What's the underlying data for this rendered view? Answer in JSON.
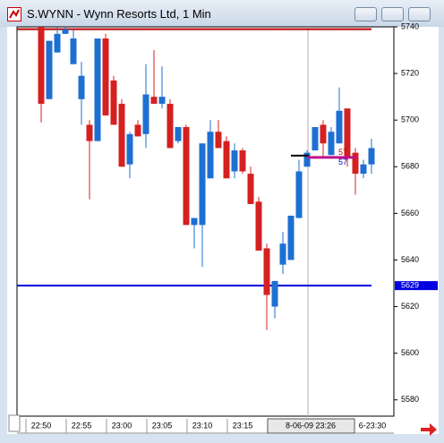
{
  "window_title": "S.WYNN - Wynn Resorts Ltd, 1 Min",
  "chart_data": {
    "type": "candlestick",
    "categories": [
      "22:50",
      null,
      null,
      null,
      null,
      "22:55",
      null,
      null,
      null,
      null,
      "23:00",
      null,
      null,
      null,
      null,
      "23:05",
      null,
      null,
      null,
      null,
      "23:10",
      null,
      null,
      null,
      null,
      "23:15",
      null,
      null,
      null,
      null,
      null,
      null,
      null,
      null,
      null,
      null,
      null,
      null,
      null,
      null,
      null,
      null
    ],
    "open": [
      5740,
      5709,
      5729,
      5737,
      5724,
      5709,
      5698,
      5691,
      5735,
      5717,
      5707,
      5681,
      5698,
      5694,
      5710,
      5707,
      5707,
      5691,
      5697,
      5655,
      5655,
      5675,
      5695,
      5691,
      5678,
      5687,
      5677,
      5665,
      5645,
      5620,
      5638,
      5640,
      5658,
      5680,
      5687,
      5698,
      5685,
      5690,
      5705,
      5686,
      5677,
      5681
    ],
    "high": [
      5740,
      5734,
      5740,
      5740,
      5739,
      5725,
      5700,
      5735,
      5737,
      5719,
      5709,
      5695,
      5700,
      5724,
      5730,
      5723,
      5709,
      5697,
      5698,
      5658,
      5690,
      5700,
      5700,
      5693,
      5690,
      5688,
      5680,
      5667,
      5647,
      5631,
      5652,
      5659,
      5683,
      5687,
      5697,
      5700,
      5697,
      5714,
      5705,
      5688,
      5683,
      5692
    ],
    "low": [
      5699,
      5709,
      5729,
      5737,
      5724,
      5698,
      5666,
      5691,
      5702,
      5698,
      5680,
      5675,
      5693,
      5688,
      5707,
      5705,
      5688,
      5690,
      5655,
      5645,
      5637,
      5675,
      5688,
      5675,
      5675,
      5677,
      5664,
      5644,
      5610,
      5615,
      5634,
      5640,
      5658,
      5680,
      5687,
      5684,
      5685,
      5690,
      5680,
      5668,
      5675,
      5677
    ],
    "close": [
      5707,
      5734,
      5737,
      5739,
      5735,
      5719,
      5691,
      5735,
      5702,
      5698,
      5680,
      5694,
      5693,
      5711,
      5707,
      5710,
      5688,
      5697,
      5655,
      5658,
      5690,
      5695,
      5688,
      5675,
      5687,
      5678,
      5664,
      5644,
      5625,
      5631,
      5647,
      5659,
      5678,
      5686,
      5697,
      5690,
      5695,
      5704,
      5684,
      5677,
      5681,
      5688
    ],
    "up_color": "#1e6fd2",
    "down_color": "#d42020",
    "ylim": [
      5573,
      5740
    ],
    "yticks": [
      5580,
      5600,
      5620,
      5640,
      5660,
      5680,
      5700,
      5720,
      5740
    ],
    "hlines": [
      {
        "value": 5739,
        "color": "#c00000"
      },
      {
        "value": 5629,
        "color": "#0000e0",
        "label": "5629"
      }
    ],
    "cursor_label": "8-06-09 23:26",
    "edge_label": "6-23:30",
    "annotations": [
      {
        "text": "57",
        "color": "#c00000"
      },
      {
        "text": "57",
        "color": "#0000c0"
      }
    ]
  }
}
